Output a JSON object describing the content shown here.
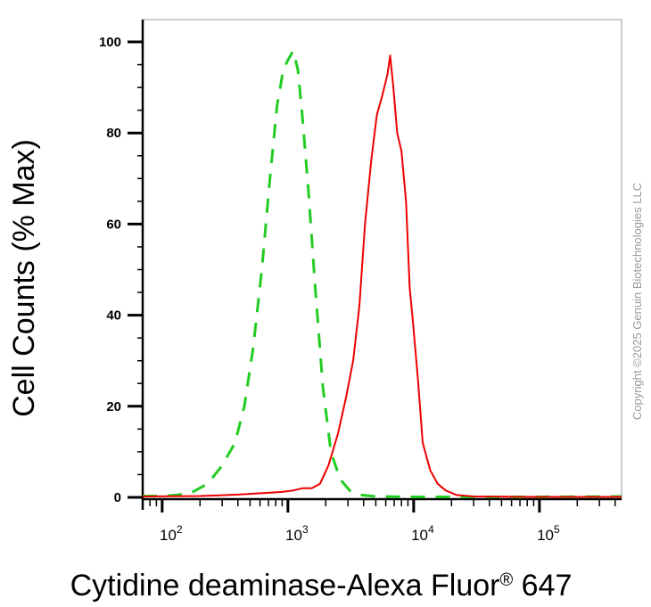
{
  "chart_data": {
    "type": "line",
    "xlabel": "Cytidine deaminase-Alexa Fluor",
    "xlabel_superscript": "®",
    "xlabel_suffix": " 647",
    "ylabel": "Cell Counts (% Max)",
    "x_scale": "log",
    "xlim": [
      70,
      450000
    ],
    "ylim": [
      0,
      105
    ],
    "y_ticks": [
      0,
      20,
      40,
      60,
      80,
      100
    ],
    "y_tick_labels": [
      "0",
      "20",
      "40",
      "60",
      "80",
      "100"
    ],
    "x_ticks": [
      {
        "value": 100,
        "base": "10",
        "exp": "2"
      },
      {
        "value": 1000,
        "base": "10",
        "exp": "3"
      },
      {
        "value": 10000,
        "base": "10",
        "exp": "4"
      },
      {
        "value": 100000,
        "base": "10",
        "exp": "5"
      }
    ],
    "grid": false,
    "series": [
      {
        "color": "#22cc22",
        "style": "dashed",
        "points": [
          [
            70,
            0.3
          ],
          [
            100,
            0.3
          ],
          [
            130,
            0.5
          ],
          [
            170,
            1
          ],
          [
            230,
            3
          ],
          [
            300,
            7
          ],
          [
            380,
            12
          ],
          [
            450,
            20
          ],
          [
            530,
            33
          ],
          [
            620,
            50
          ],
          [
            720,
            70
          ],
          [
            820,
            86
          ],
          [
            920,
            94
          ],
          [
            1000,
            96
          ],
          [
            1100,
            98
          ],
          [
            1200,
            94
          ],
          [
            1300,
            84
          ],
          [
            1450,
            68
          ],
          [
            1650,
            46
          ],
          [
            1900,
            24
          ],
          [
            2200,
            10
          ],
          [
            2600,
            4
          ],
          [
            3100,
            1.5
          ],
          [
            3800,
            0.5
          ],
          [
            5000,
            0.2
          ],
          [
            10000,
            0.1
          ],
          [
            100000,
            0.1
          ],
          [
            450000,
            0.2
          ]
        ]
      },
      {
        "color": "#ee0000",
        "style": "solid",
        "points": [
          [
            70,
            0.2
          ],
          [
            200,
            0.3
          ],
          [
            400,
            0.6
          ],
          [
            700,
            1
          ],
          [
            900,
            1.2
          ],
          [
            1100,
            1.5
          ],
          [
            1300,
            2
          ],
          [
            1550,
            2
          ],
          [
            1800,
            3
          ],
          [
            2100,
            7
          ],
          [
            2500,
            14
          ],
          [
            2900,
            22
          ],
          [
            3300,
            30
          ],
          [
            3700,
            42
          ],
          [
            4100,
            60
          ],
          [
            4600,
            74
          ],
          [
            5100,
            84
          ],
          [
            5600,
            88
          ],
          [
            6200,
            93
          ],
          [
            6500,
            97
          ],
          [
            6900,
            90
          ],
          [
            7400,
            80
          ],
          [
            8000,
            76
          ],
          [
            8700,
            65
          ],
          [
            9300,
            46
          ],
          [
            9900,
            38
          ],
          [
            10800,
            26
          ],
          [
            11800,
            12
          ],
          [
            13500,
            6
          ],
          [
            15500,
            3
          ],
          [
            18000,
            1.5
          ],
          [
            22000,
            0.5
          ],
          [
            30000,
            0.2
          ],
          [
            100000,
            0.1
          ],
          [
            450000,
            0.1
          ]
        ]
      }
    ]
  },
  "copyright": "Copyright ©2025 Genuin Biotechnologies LLC"
}
